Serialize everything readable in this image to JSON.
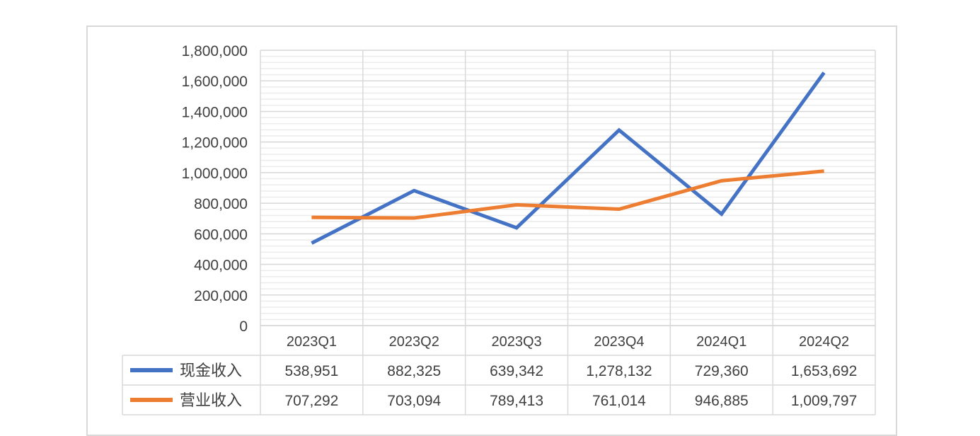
{
  "chart_data": {
    "type": "line",
    "categories": [
      "2023Q1",
      "2023Q2",
      "2023Q3",
      "2023Q4",
      "2024Q1",
      "2024Q2"
    ],
    "ylim": [
      0,
      1800000
    ],
    "yticks": [
      "0",
      "200,000",
      "400,000",
      "600,000",
      "800,000",
      "1,000,000",
      "1,200,000",
      "1,400,000",
      "1,600,000",
      "1,800,000"
    ],
    "grid": true,
    "data_table": true,
    "series": [
      {
        "name": "现金收入",
        "color": "#4472c4",
        "values": [
          538951,
          882325,
          639342,
          1278132,
          729360,
          1653692
        ],
        "labels": [
          "538,951",
          "882,325",
          "639,342",
          "1,278,132",
          "729,360",
          "1,653,692"
        ]
      },
      {
        "name": "营业收入",
        "color": "#ed7d31",
        "values": [
          707292,
          703094,
          789413,
          761014,
          946885,
          1009797
        ],
        "labels": [
          "707,292",
          "703,094",
          "789,413",
          "761,014",
          "946,885",
          "1,009,797"
        ]
      }
    ]
  }
}
